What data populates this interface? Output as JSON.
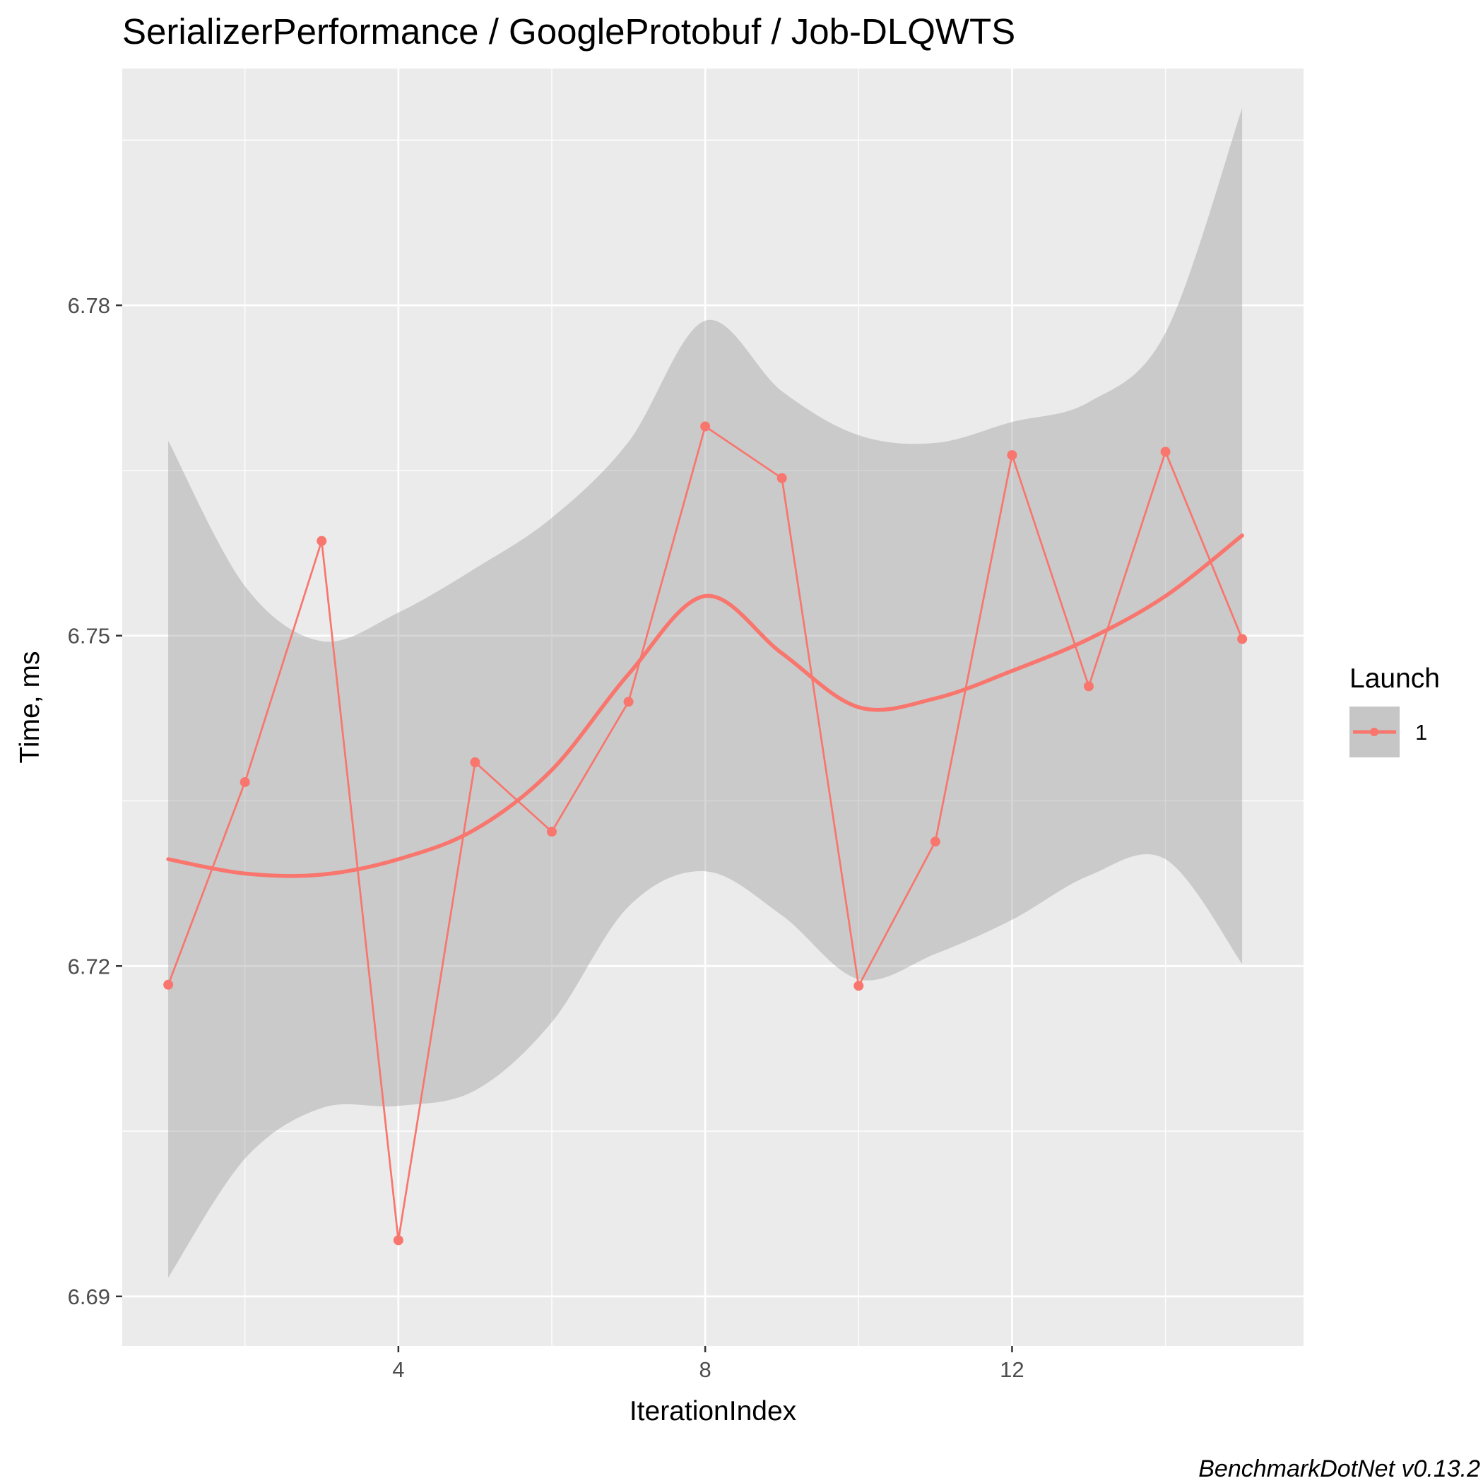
{
  "chart_data": {
    "type": "line",
    "title": "SerializerPerformance / GoogleProtobuf / Job-DLQWTS",
    "xlabel": "IterationIndex",
    "ylabel": "Time, ms",
    "xlim": [
      0.4,
      15.8
    ],
    "ylim": [
      6.6855,
      6.8015
    ],
    "x_ticks": [
      4,
      8,
      12
    ],
    "y_ticks": [
      6.69,
      6.72,
      6.75,
      6.78
    ],
    "x_tick_labels": [
      "4",
      "8",
      "12"
    ],
    "y_tick_labels": [
      "6.69",
      "6.72",
      "6.75",
      "6.78"
    ],
    "grid": true,
    "legend": {
      "title": "Launch",
      "position": "right",
      "entries": [
        "1"
      ]
    },
    "caption": "BenchmarkDotNet v0.13.2",
    "series": [
      {
        "name": "1",
        "color": "#F8766D",
        "x": [
          1,
          2,
          3,
          4,
          5,
          6,
          7,
          8,
          9,
          10,
          11,
          12,
          13,
          14,
          15
        ],
        "values": [
          6.7183,
          6.7367,
          6.7586,
          6.6951,
          6.7385,
          6.7322,
          6.744,
          6.769,
          6.7643,
          6.7182,
          6.7313,
          6.7664,
          6.7454,
          6.7667,
          6.7497
        ]
      }
    ],
    "smooth": {
      "x": [
        1,
        2,
        3,
        4,
        5,
        6,
        7,
        8,
        9,
        10,
        11,
        12,
        13,
        14,
        15
      ],
      "y": [
        6.7297,
        6.7284,
        6.7283,
        6.7297,
        6.7324,
        6.7378,
        6.7465,
        6.7536,
        6.7484,
        6.7435,
        6.7443,
        6.7468,
        6.7497,
        6.7536,
        6.7591
      ],
      "lower": [
        6.6917,
        6.7025,
        6.7071,
        6.7073,
        6.7087,
        6.7149,
        6.7254,
        6.7286,
        6.7246,
        6.7188,
        6.7211,
        6.7242,
        6.7282,
        6.7297,
        6.7202
      ],
      "upper": [
        6.7677,
        6.7545,
        6.7495,
        6.7521,
        6.7561,
        6.7607,
        6.7676,
        6.7786,
        6.7722,
        6.7682,
        6.7675,
        6.7694,
        6.7712,
        6.7775,
        6.7979
      ]
    }
  }
}
